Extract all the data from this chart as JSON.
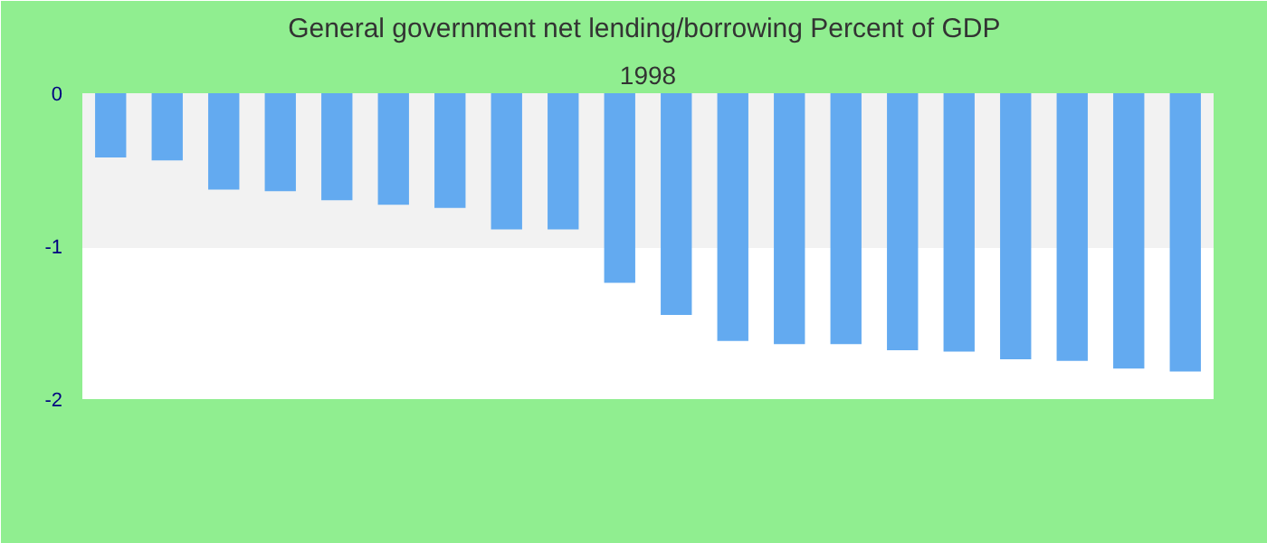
{
  "chart_data": {
    "type": "bar",
    "title": "General government net lending/borrowing  Percent of GDP",
    "subtitle": "1998",
    "categories": [
      null,
      null,
      null,
      null,
      null,
      null,
      null,
      null,
      null,
      null,
      null,
      null,
      null,
      null,
      null,
      null,
      null,
      null,
      null,
      null
    ],
    "values": [
      -0.42,
      -0.44,
      -0.63,
      -0.64,
      -0.7,
      -0.73,
      -0.75,
      -0.89,
      -0.89,
      -1.24,
      -1.45,
      -1.62,
      -1.64,
      -1.64,
      -1.68,
      -1.69,
      -1.74,
      -1.75,
      -1.8,
      -1.82
    ],
    "color": "#63aaf0",
    "ylim": [
      -2,
      0
    ],
    "yticks": [
      -2,
      -1,
      0
    ],
    "grid": "y"
  }
}
